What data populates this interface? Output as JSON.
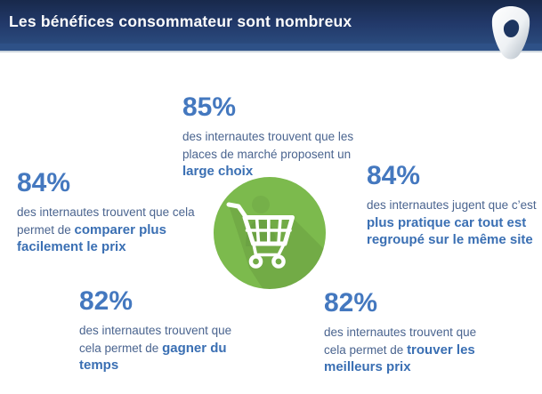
{
  "header": {
    "title": "Les bénéfices consommateur sont nombreux"
  },
  "logo": {
    "name": "brand-shield-logo"
  },
  "center_icon": {
    "name": "shopping-cart"
  },
  "colors": {
    "header_navy_top": "#18294b",
    "header_navy_bottom": "#2a4a7c",
    "header_band": "#2e5187",
    "accent_blue": "#4478BF",
    "body_text_blue": "#4A648F",
    "bold_text_blue": "#3A6FB3",
    "icon_green": "#7CBA4D",
    "title_white": "#fdfdfd"
  },
  "stats": [
    {
      "value": "85%",
      "lines": [
        [
          {
            "t": "des internautes trouvent que les"
          }
        ],
        [
          {
            "t": "places de marché proposent un"
          }
        ],
        [
          {
            "t": "large choix",
            "b": true
          }
        ]
      ]
    },
    {
      "value": "84%",
      "lines": [
        [
          {
            "t": "des internautes trouvent que cela"
          }
        ],
        [
          {
            "t": "permet de "
          },
          {
            "t": "comparer plus",
            "b": true
          }
        ],
        [
          {
            "t": "facilement le prix",
            "b": true
          }
        ]
      ]
    },
    {
      "value": "84%",
      "lines": [
        [
          {
            "t": "des internautes jugent que c’est"
          }
        ],
        [
          {
            "t": "plus pratique car tout est",
            "b": true
          }
        ],
        [
          {
            "t": "regroupé sur le même site",
            "b": true
          }
        ]
      ]
    },
    {
      "value": "82%",
      "lines": [
        [
          {
            "t": "des internautes trouvent que"
          }
        ],
        [
          {
            "t": "cela permet de "
          },
          {
            "t": "gagner du",
            "b": true
          }
        ],
        [
          {
            "t": "temps",
            "b": true
          }
        ]
      ]
    },
    {
      "value": "82%",
      "lines": [
        [
          {
            "t": "des internautes trouvent que"
          }
        ],
        [
          {
            "t": "cela permet de "
          },
          {
            "t": "trouver les",
            "b": true
          }
        ],
        [
          {
            "t": "meilleurs prix",
            "b": true
          }
        ]
      ]
    }
  ]
}
